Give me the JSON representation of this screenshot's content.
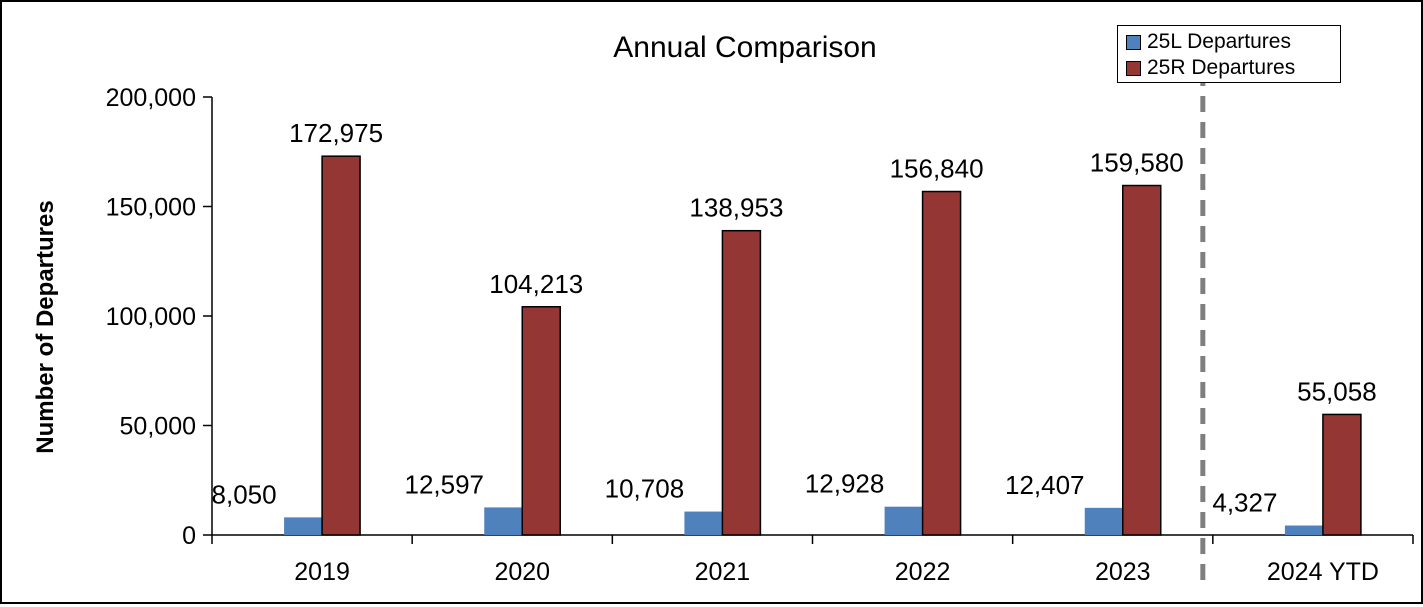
{
  "chart_data": {
    "type": "bar",
    "title": "Annual Comparison",
    "ylabel": "Number of Departures",
    "xlabel": "",
    "ylim": [
      0,
      200000
    ],
    "yticks": [
      0,
      50000,
      100000,
      150000,
      200000
    ],
    "ytick_labels": [
      "0",
      "50,000",
      "100,000",
      "150,000",
      "200,000"
    ],
    "categories": [
      "2019",
      "2020",
      "2021",
      "2022",
      "2023",
      "2024 YTD"
    ],
    "series": [
      {
        "name": "25L Departures",
        "color": "#4f81bd",
        "values": [
          8050,
          12597,
          10708,
          12928,
          12407,
          4327
        ],
        "labels": [
          "8,050",
          "12,597",
          "10,708",
          "12,928",
          "12,407",
          "4,327"
        ]
      },
      {
        "name": "25R Departures",
        "color": "#943634",
        "values": [
          172975,
          104213,
          138953,
          156840,
          159580,
          55058
        ],
        "labels": [
          "172,975",
          "104,213",
          "138,953",
          "156,840",
          "159,580",
          "55,058"
        ]
      }
    ],
    "legend": "top-right",
    "grid": false,
    "divider": "dashed line between 2023 and 2024 YTD"
  }
}
